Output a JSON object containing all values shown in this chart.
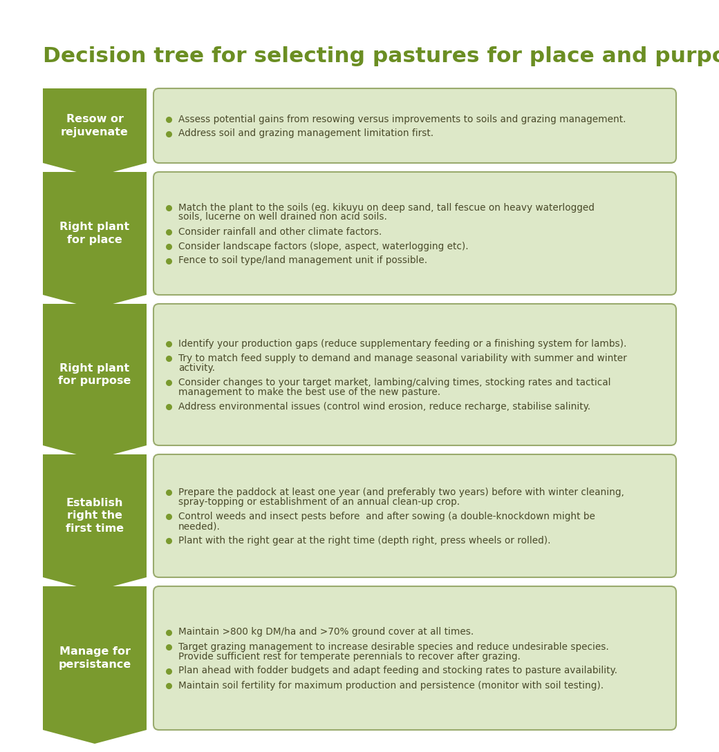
{
  "title": "Decision tree for selecting pastures for place and purpose",
  "title_color": "#6b8e23",
  "background_color": "#ffffff",
  "arrow_color": "#7a9a2e",
  "arrow_text_color": "#ffffff",
  "box_bg_color": "#dde8c8",
  "box_border_color": "#9aab6e",
  "bullet_color": "#7a9a2e",
  "text_color": "#4a4a2a",
  "rows": [
    {
      "label": "Resow or\nrejuvenate",
      "points": [
        "Assess potential gains from resowing versus improvements to soils and grazing management.",
        "Address soil and grazing management limitation first."
      ]
    },
    {
      "label": "Right plant\nfor place",
      "points": [
        "Match the plant to the soils (eg. kikuyu on deep sand, tall fescue on heavy waterlogged\nsoils, lucerne on well drained non acid soils.",
        "Consider rainfall and other climate factors.",
        "Consider landscape factors (slope, aspect, waterlogging etc).",
        "Fence to soil type/land management unit if possible."
      ]
    },
    {
      "label": "Right plant\nfor purpose",
      "points": [
        "Identify your production gaps (reduce supplementary feeding or a finishing system for lambs).",
        "Try to match feed supply to demand and manage seasonal variability with summer and winter\nactivity.",
        "Consider changes to your target market, lambing/calving times, stocking rates and tactical\nmanagement to make the best use of the new pasture.",
        "Address environmental issues (control wind erosion, reduce recharge, stabilise salinity."
      ]
    },
    {
      "label": "Establish\nright the\nfirst time",
      "points": [
        "Prepare the paddock at least one year (and preferably two years) before with winter cleaning,\nspray-topping or establishment of an annual clean-up crop.",
        "Control weeds and insect pests before  and after sowing (a double-knockdown might be\nneeded).",
        "Plant with the right gear at the right time (depth right, press wheels or rolled)."
      ]
    },
    {
      "label": "Manage for\npersistance",
      "points": [
        "Maintain >800 kg DM/ha and >70% ground cover at all times.",
        "Target grazing management to increase desirable species and reduce undesirable species.\nProvide sufficient rest for temperate perennials to recover after grazing.",
        "Plan ahead with fodder budgets and adapt feeding and stocking rates to pasture availability.",
        "Maintain soil fertility for maximum production and persistence (monitor with soil testing)."
      ]
    }
  ]
}
